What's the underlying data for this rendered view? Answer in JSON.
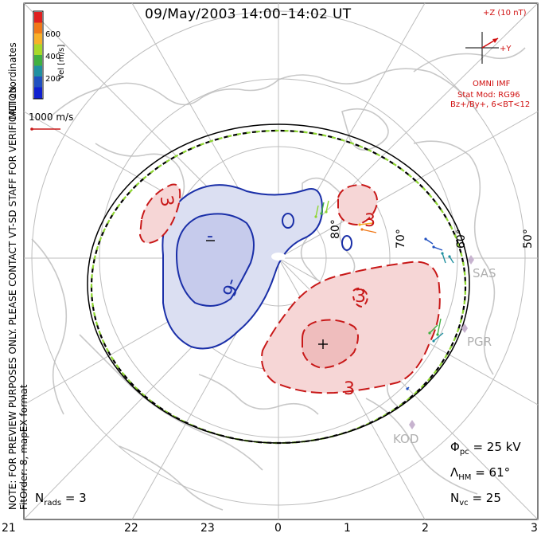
{
  "title": "09/May/2003 14:00–14:02 UT",
  "coord_system": "MLT coordinates",
  "side_note": "NOTE: FOR PREVIEW PURPOSES ONLY. PLEASE CONTACT VT-SD STAFF FOR VERIFICATION.",
  "fit_note": "FitOrder: 8, mapEX format",
  "colorbar": {
    "label": "Vel [m/s]",
    "ticks": [
      "600",
      "400",
      "200"
    ],
    "colors": [
      "#e02020",
      "#f07818",
      "#f8b028",
      "#a8d828",
      "#40b040",
      "#2090a0",
      "#2050c0",
      "#1020d0"
    ]
  },
  "vector_scale": "1000 m/s",
  "imf": {
    "z_label": "+Z (10 nT)",
    "y_label": "+Y",
    "source": "OMNI IMF",
    "model": "Stat Mod: RG96",
    "condition": "Bz+/By+, 6<BT<12",
    "color": "#d01010"
  },
  "latitude_labels": [
    "80°",
    "70°",
    "60°",
    "50°"
  ],
  "mlt_labels": [
    "21",
    "22",
    "23",
    "0",
    "1",
    "2",
    "3"
  ],
  "stations": [
    "SAS",
    "PGR",
    "KOD"
  ],
  "contour_labels": {
    "negative": [
      "-6",
      "-"
    ],
    "positive": [
      "3",
      "3",
      "3",
      "3",
      "+"
    ]
  },
  "stats": {
    "phi_pc_symbol": "Φ",
    "phi_pc_sub": "pc",
    "phi_pc_value": "= 25 kV",
    "lambda_hm_symbol": "Λ",
    "lambda_hm_sub": "HM",
    "lambda_hm_value": "= 61°",
    "n_vc_symbol": "N",
    "n_vc_sub": "vc",
    "n_vc_value": "= 25",
    "n_rads_symbol": "N",
    "n_rads_sub": "rads",
    "n_rads_value": "= 3"
  },
  "colors": {
    "negative": "#1a2fa8",
    "positive": "#c81818",
    "hm_boundary": "#000000",
    "land": "#c8c8c8"
  }
}
